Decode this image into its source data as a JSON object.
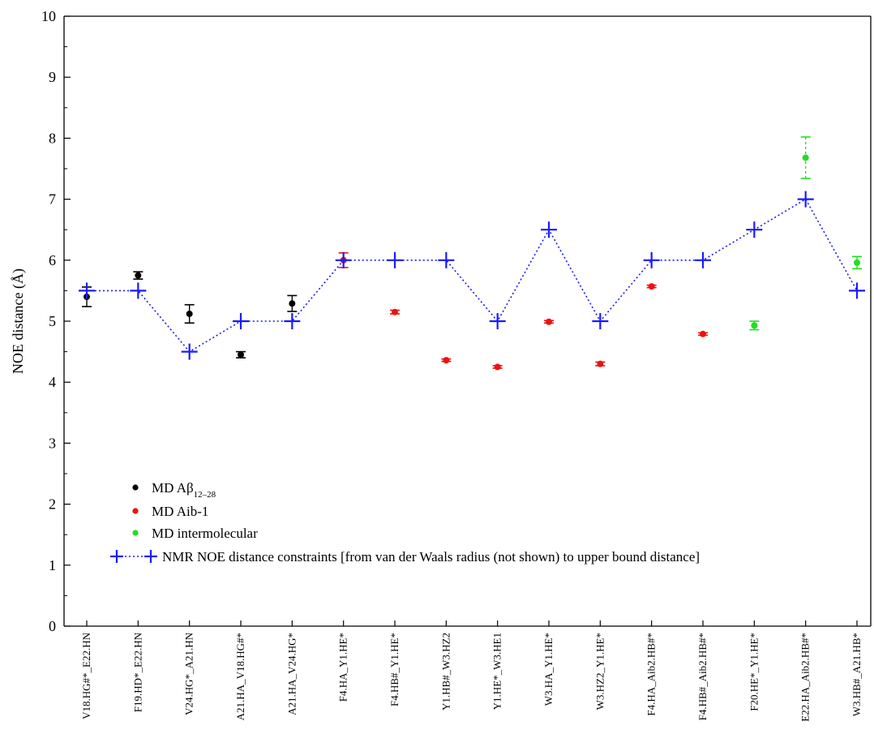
{
  "chart_data": {
    "type": "scatter",
    "ylabel": "NOE distance (Å)",
    "xlabel": "",
    "ylim": [
      0,
      10
    ],
    "yticks": [
      0,
      1,
      2,
      3,
      4,
      5,
      6,
      7,
      8,
      9,
      10
    ],
    "categories": [
      "V18.HG#*_E22.HN",
      "F19.HD*_E22.HN",
      "V24.HG*_A21.HN",
      "A21.HA_V18.HG#*",
      "A21.HA_V24.HG*",
      "F4.HA_Y1.HE*",
      "F4.HB#_Y1.HE*",
      "Y1.HB#_W3.HZ2",
      "Y1.HE*_W3.HE1",
      "W3.HA_Y1.HE*",
      "W3.HZ2_Y1.HE*",
      "F4.HA_Aib2.HB#*",
      "F4.HB#_Aib2.HB#*",
      "F20.HE*_Y1.HE*",
      "E22.HA_Aib2.HB#*",
      "W3.HB#_A21.HB*"
    ],
    "series": [
      {
        "name": "MD Aβ12–28",
        "name_main": "MD Aβ",
        "name_sub": "12–28",
        "color": "#000000",
        "marker": "circle",
        "points": [
          {
            "x": "V18.HG#*_E22.HN",
            "y": 5.4,
            "err": 0.16
          },
          {
            "x": "F19.HD*_E22.HN",
            "y": 5.75,
            "err": 0.06
          },
          {
            "x": "V24.HG*_A21.HN",
            "y": 5.12,
            "err": 0.15
          },
          {
            "x": "A21.HA_V18.HG#*",
            "y": 4.45,
            "err": 0.05
          },
          {
            "x": "A21.HA_V24.HG*",
            "y": 5.29,
            "err": 0.13
          }
        ]
      },
      {
        "name": "MD Aib-1",
        "color": "#ee1111",
        "marker": "circle",
        "points": [
          {
            "x": "F4.HA_Y1.HE*",
            "y": 6.0,
            "err": 0.12
          },
          {
            "x": "F4.HB#_Y1.HE*",
            "y": 5.15,
            "err": 0.03
          },
          {
            "x": "Y1.HB#_W3.HZ2",
            "y": 4.36,
            "err": 0.02
          },
          {
            "x": "Y1.HE*_W3.HE1",
            "y": 4.25,
            "err": 0.02
          },
          {
            "x": "W3.HA_Y1.HE*",
            "y": 4.99,
            "err": 0.02
          },
          {
            "x": "W3.HZ2_Y1.HE*",
            "y": 4.3,
            "err": 0.03
          },
          {
            "x": "F4.HA_Aib2.HB#*",
            "y": 5.57,
            "err": 0.02
          },
          {
            "x": "F4.HB#_Aib2.HB#*",
            "y": 4.79,
            "err": 0.02
          }
        ]
      },
      {
        "name": "MD intermolecular",
        "color": "#22dd22",
        "marker": "circle",
        "points": [
          {
            "x": "F20.HE*_Y1.HE*",
            "y": 4.93,
            "err": 0.07
          },
          {
            "x": "E22.HA_Aib2.HB#*",
            "y": 7.68,
            "err": 0.34
          },
          {
            "x": "W3.HB#_A21.HB*",
            "y": 5.96,
            "err": 0.1
          }
        ]
      },
      {
        "name": "NMR NOE distance constraints [from van der Waals radius (not shown) to upper bound distance]",
        "color": "#1a1aff",
        "marker": "plus",
        "line": "dotted",
        "points": [
          {
            "x": "V18.HG#*_E22.HN",
            "y": 5.5
          },
          {
            "x": "F19.HD*_E22.HN",
            "y": 5.5
          },
          {
            "x": "V24.HG*_A21.HN",
            "y": 4.5
          },
          {
            "x": "A21.HA_V18.HG#*",
            "y": 5.0
          },
          {
            "x": "A21.HA_V24.HG*",
            "y": 5.0
          },
          {
            "x": "F4.HA_Y1.HE*",
            "y": 6.0
          },
          {
            "x": "F4.HB#_Y1.HE*",
            "y": 6.0
          },
          {
            "x": "Y1.HB#_W3.HZ2",
            "y": 6.0
          },
          {
            "x": "Y1.HE*_W3.HE1",
            "y": 5.0
          },
          {
            "x": "W3.HA_Y1.HE*",
            "y": 6.5
          },
          {
            "x": "W3.HZ2_Y1.HE*",
            "y": 5.0
          },
          {
            "x": "F4.HA_Aib2.HB#*",
            "y": 6.0
          },
          {
            "x": "F4.HB#_Aib2.HB#*",
            "y": 6.0
          },
          {
            "x": "F20.HE*_Y1.HE*",
            "y": 6.5
          },
          {
            "x": "E22.HA_Aib2.HB#*",
            "y": 7.0
          },
          {
            "x": "W3.HB#_A21.HB*",
            "y": 5.5
          }
        ]
      }
    ],
    "legend_position": "bottom-left",
    "grid": false
  }
}
